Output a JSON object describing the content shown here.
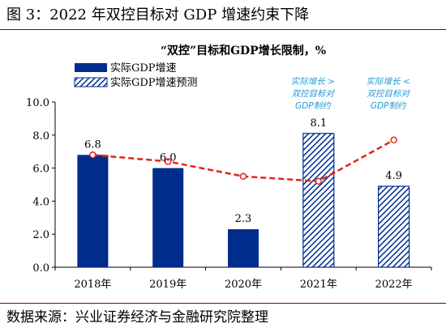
{
  "figure_title": "图 3：2022 年双控目标对 GDP 增速约束下降",
  "source": "数据来源：兴业证券经济与金融研究院整理",
  "colors": {
    "bar": "#002D8C",
    "hatch": "#002D8C",
    "line": "#E8221A",
    "note": "#1F9AD6",
    "rule": "#6B0D12"
  },
  "chart_data": {
    "type": "bar",
    "title": "“双控”目标和GDP增长限制，%",
    "categories": [
      "2018年",
      "2019年",
      "2020年",
      "2021年",
      "2022年"
    ],
    "ylim": [
      0,
      10
    ],
    "yticks": [
      "0.0",
      "2.0",
      "4.0",
      "6.0",
      "8.0",
      "10.0"
    ],
    "legend_position": "top-left",
    "grid": false,
    "series": [
      {
        "name": "实际GDP增速",
        "style": "solid",
        "values": [
          6.8,
          6.0,
          2.3,
          null,
          null
        ],
        "labels": [
          "6.8",
          "6.0",
          "2.3",
          "",
          ""
        ]
      },
      {
        "name": "实际GDP增速预测",
        "style": "hatched",
        "values": [
          null,
          null,
          null,
          8.1,
          4.9
        ],
        "labels": [
          "",
          "",
          "",
          "8.1",
          "4.9"
        ]
      },
      {
        "name": "",
        "style": "dashed-line",
        "values": [
          6.8,
          6.4,
          5.5,
          5.2,
          7.7
        ]
      }
    ],
    "annotations": [
      {
        "category": "2021年",
        "lines": [
          "实际增长 >",
          "双控目标对",
          "GDP制约"
        ]
      },
      {
        "category": "2022年",
        "lines": [
          "实际增长 <",
          "双控目标对",
          "GDP制约"
        ]
      }
    ]
  }
}
